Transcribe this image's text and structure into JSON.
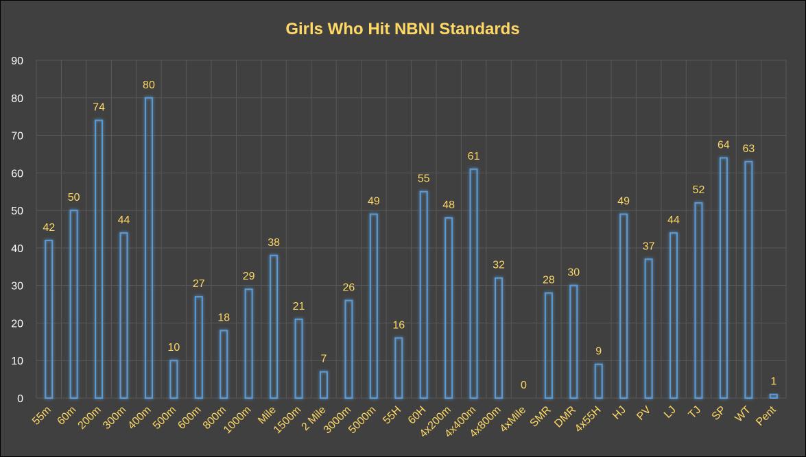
{
  "chart_data": {
    "type": "bar",
    "title": "Girls Who Hit NBNI Standards",
    "xlabel": "",
    "ylabel": "",
    "ylim": [
      0,
      90
    ],
    "yticks": [
      0,
      10,
      20,
      30,
      40,
      50,
      60,
      70,
      80,
      90
    ],
    "grid": true,
    "legend": "none",
    "categories": [
      "55m",
      "60m",
      "200m",
      "300m",
      "400m",
      "500m",
      "600m",
      "800m",
      "1000m",
      "Mile",
      "1500m",
      "2 Mile",
      "3000m",
      "5000m",
      "55H",
      "60H",
      "4x200m",
      "4x400m",
      "4x800m",
      "4xMile",
      "SMR",
      "DMR",
      "4x55H",
      "HJ",
      "PV",
      "LJ",
      "TJ",
      "SP",
      "WT",
      "Pent"
    ],
    "values": [
      42,
      50,
      74,
      44,
      80,
      10,
      27,
      18,
      29,
      38,
      21,
      7,
      26,
      49,
      16,
      55,
      48,
      61,
      32,
      0,
      28,
      30,
      9,
      49,
      37,
      44,
      52,
      64,
      63,
      1
    ]
  },
  "colors": {
    "background": "#404040",
    "title": "#FFD966",
    "label": "#FFD966",
    "tick": "#FFFFFF",
    "grid": "#595959",
    "bar_stroke": "#5B9BD5",
    "bar_glow": "#1F6FD0"
  }
}
